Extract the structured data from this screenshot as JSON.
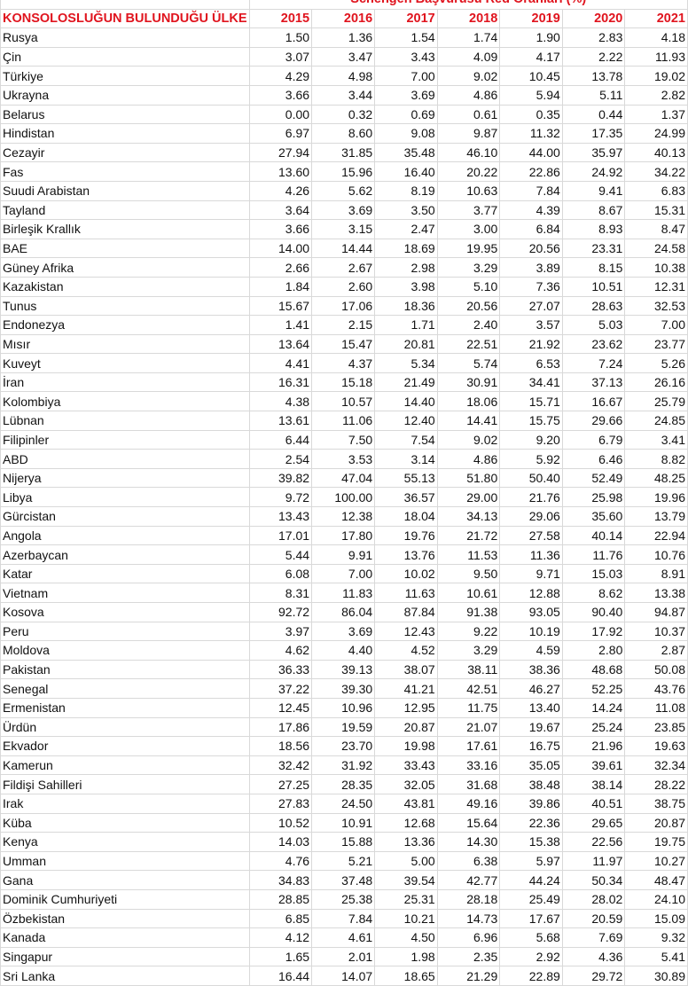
{
  "table": {
    "group_header": "Schengen Başvurusu Red Oranları (%)",
    "first_column_header": "KONSOLOSLUĞUN BULUNDUĞU ÜLKE",
    "years": [
      "2015",
      "2016",
      "2017",
      "2018",
      "2019",
      "2020",
      "2021"
    ],
    "header_color": "#e0141e",
    "rows": [
      {
        "country": "Rusya",
        "values": [
          "1.50",
          "1.36",
          "1.54",
          "1.74",
          "1.90",
          "2.83",
          "4.18"
        ]
      },
      {
        "country": "Çin",
        "values": [
          "3.07",
          "3.47",
          "3.43",
          "4.09",
          "4.17",
          "2.22",
          "11.93"
        ]
      },
      {
        "country": "Türkiye",
        "values": [
          "4.29",
          "4.98",
          "7.00",
          "9.02",
          "10.45",
          "13.78",
          "19.02"
        ]
      },
      {
        "country": "Ukrayna",
        "values": [
          "3.66",
          "3.44",
          "3.69",
          "4.86",
          "5.94",
          "5.11",
          "2.82"
        ]
      },
      {
        "country": "Belarus",
        "values": [
          "0.00",
          "0.32",
          "0.69",
          "0.61",
          "0.35",
          "0.44",
          "1.37"
        ]
      },
      {
        "country": "Hindistan",
        "values": [
          "6.97",
          "8.60",
          "9.08",
          "9.87",
          "11.32",
          "17.35",
          "24.99"
        ]
      },
      {
        "country": "Cezayir",
        "values": [
          "27.94",
          "31.85",
          "35.48",
          "46.10",
          "44.00",
          "35.97",
          "40.13"
        ]
      },
      {
        "country": "Fas",
        "values": [
          "13.60",
          "15.96",
          "16.40",
          "20.22",
          "22.86",
          "24.92",
          "34.22"
        ]
      },
      {
        "country": "Suudi Arabistan",
        "values": [
          "4.26",
          "5.62",
          "8.19",
          "10.63",
          "7.84",
          "9.41",
          "6.83"
        ]
      },
      {
        "country": "Tayland",
        "values": [
          "3.64",
          "3.69",
          "3.50",
          "3.77",
          "4.39",
          "8.67",
          "15.31"
        ]
      },
      {
        "country": "Birleşik Krallık",
        "values": [
          "3.66",
          "3.15",
          "2.47",
          "3.00",
          "6.84",
          "8.93",
          "8.47"
        ]
      },
      {
        "country": "BAE",
        "values": [
          "14.00",
          "14.44",
          "18.69",
          "19.95",
          "20.56",
          "23.31",
          "24.58"
        ]
      },
      {
        "country": "Güney Afrika",
        "values": [
          "2.66",
          "2.67",
          "2.98",
          "3.29",
          "3.89",
          "8.15",
          "10.38"
        ]
      },
      {
        "country": "Kazakistan",
        "values": [
          "1.84",
          "2.60",
          "3.98",
          "5.10",
          "7.36",
          "10.51",
          "12.31"
        ]
      },
      {
        "country": "Tunus",
        "values": [
          "15.67",
          "17.06",
          "18.36",
          "20.56",
          "27.07",
          "28.63",
          "32.53"
        ]
      },
      {
        "country": "Endonezya",
        "values": [
          "1.41",
          "2.15",
          "1.71",
          "2.40",
          "3.57",
          "5.03",
          "7.00"
        ]
      },
      {
        "country": "Mısır",
        "values": [
          "13.64",
          "15.47",
          "20.81",
          "22.51",
          "21.92",
          "23.62",
          "23.77"
        ]
      },
      {
        "country": "Kuveyt",
        "values": [
          "4.41",
          "4.37",
          "5.34",
          "5.74",
          "6.53",
          "7.24",
          "5.26"
        ]
      },
      {
        "country": "İran",
        "values": [
          "16.31",
          "15.18",
          "21.49",
          "30.91",
          "34.41",
          "37.13",
          "26.16"
        ]
      },
      {
        "country": "Kolombiya",
        "values": [
          "4.38",
          "10.57",
          "14.40",
          "18.06",
          "15.71",
          "16.67",
          "25.79"
        ]
      },
      {
        "country": "Lübnan",
        "values": [
          "13.61",
          "11.06",
          "12.40",
          "14.41",
          "15.75",
          "29.66",
          "24.85"
        ]
      },
      {
        "country": "Filipinler",
        "values": [
          "6.44",
          "7.50",
          "7.54",
          "9.02",
          "9.20",
          "6.79",
          "3.41"
        ]
      },
      {
        "country": "ABD",
        "values": [
          "2.54",
          "3.53",
          "3.14",
          "4.86",
          "5.92",
          "6.46",
          "8.82"
        ]
      },
      {
        "country": "Nijerya",
        "values": [
          "39.82",
          "47.04",
          "55.13",
          "51.80",
          "50.40",
          "52.49",
          "48.25"
        ]
      },
      {
        "country": "Libya",
        "values": [
          "9.72",
          "100.00",
          "36.57",
          "29.00",
          "21.76",
          "25.98",
          "19.96"
        ]
      },
      {
        "country": "Gürcistan",
        "values": [
          "13.43",
          "12.38",
          "18.04",
          "34.13",
          "29.06",
          "35.60",
          "13.79"
        ]
      },
      {
        "country": "Angola",
        "values": [
          "17.01",
          "17.80",
          "19.76",
          "21.72",
          "27.58",
          "40.14",
          "22.94"
        ]
      },
      {
        "country": "Azerbaycan",
        "values": [
          "5.44",
          "9.91",
          "13.76",
          "11.53",
          "11.36",
          "11.76",
          "10.76"
        ]
      },
      {
        "country": "Katar",
        "values": [
          "6.08",
          "7.00",
          "10.02",
          "9.50",
          "9.71",
          "15.03",
          "8.91"
        ]
      },
      {
        "country": "Vietnam",
        "values": [
          "8.31",
          "11.83",
          "11.63",
          "10.61",
          "12.88",
          "8.62",
          "13.38"
        ]
      },
      {
        "country": "Kosova",
        "values": [
          "92.72",
          "86.04",
          "87.84",
          "91.38",
          "93.05",
          "90.40",
          "94.87"
        ]
      },
      {
        "country": "Peru",
        "values": [
          "3.97",
          "3.69",
          "12.43",
          "9.22",
          "10.19",
          "17.92",
          "10.37"
        ]
      },
      {
        "country": "Moldova",
        "values": [
          "4.62",
          "4.40",
          "4.52",
          "3.29",
          "4.59",
          "2.80",
          "2.87"
        ]
      },
      {
        "country": "Pakistan",
        "values": [
          "36.33",
          "39.13",
          "38.07",
          "38.11",
          "38.36",
          "48.68",
          "50.08"
        ]
      },
      {
        "country": "Senegal",
        "values": [
          "37.22",
          "39.30",
          "41.21",
          "42.51",
          "46.27",
          "52.25",
          "43.76"
        ]
      },
      {
        "country": "Ermenistan",
        "values": [
          "12.45",
          "10.96",
          "12.95",
          "11.75",
          "13.40",
          "14.24",
          "11.08"
        ]
      },
      {
        "country": "Ürdün",
        "values": [
          "17.86",
          "19.59",
          "20.87",
          "21.07",
          "19.67",
          "25.24",
          "23.85"
        ]
      },
      {
        "country": "Ekvador",
        "values": [
          "18.56",
          "23.70",
          "19.98",
          "17.61",
          "16.75",
          "21.96",
          "19.63"
        ]
      },
      {
        "country": "Kamerun",
        "values": [
          "32.42",
          "31.92",
          "33.43",
          "33.16",
          "35.05",
          "39.61",
          "32.34"
        ]
      },
      {
        "country": "Fildişi Sahilleri",
        "values": [
          "27.25",
          "28.35",
          "32.05",
          "31.68",
          "38.48",
          "38.14",
          "28.22"
        ]
      },
      {
        "country": "Irak",
        "values": [
          "27.83",
          "24.50",
          "43.81",
          "49.16",
          "39.86",
          "40.51",
          "38.75"
        ]
      },
      {
        "country": "Küba",
        "values": [
          "10.52",
          "10.91",
          "12.68",
          "15.64",
          "22.36",
          "29.65",
          "20.87"
        ]
      },
      {
        "country": "Kenya",
        "values": [
          "14.03",
          "15.88",
          "13.36",
          "14.30",
          "15.38",
          "22.56",
          "19.75"
        ]
      },
      {
        "country": "Umman",
        "values": [
          "4.76",
          "5.21",
          "5.00",
          "6.38",
          "5.97",
          "11.97",
          "10.27"
        ]
      },
      {
        "country": "Gana",
        "values": [
          "34.83",
          "37.48",
          "39.54",
          "42.77",
          "44.24",
          "50.34",
          "48.47"
        ]
      },
      {
        "country": "Dominik Cumhuriyeti",
        "values": [
          "28.85",
          "25.38",
          "25.31",
          "28.18",
          "25.49",
          "28.02",
          "24.10"
        ]
      },
      {
        "country": "Özbekistan",
        "values": [
          "6.85",
          "7.84",
          "10.21",
          "14.73",
          "17.67",
          "20.59",
          "15.09"
        ]
      },
      {
        "country": "Kanada",
        "values": [
          "4.12",
          "4.61",
          "4.50",
          "6.96",
          "5.68",
          "7.69",
          "9.32"
        ]
      },
      {
        "country": "Singapur",
        "values": [
          "1.65",
          "2.01",
          "1.98",
          "2.35",
          "2.92",
          "4.36",
          "5.41"
        ]
      },
      {
        "country": "Sri Lanka",
        "values": [
          "16.44",
          "14.07",
          "18.65",
          "21.29",
          "22.89",
          "29.72",
          "30.89"
        ]
      }
    ]
  }
}
